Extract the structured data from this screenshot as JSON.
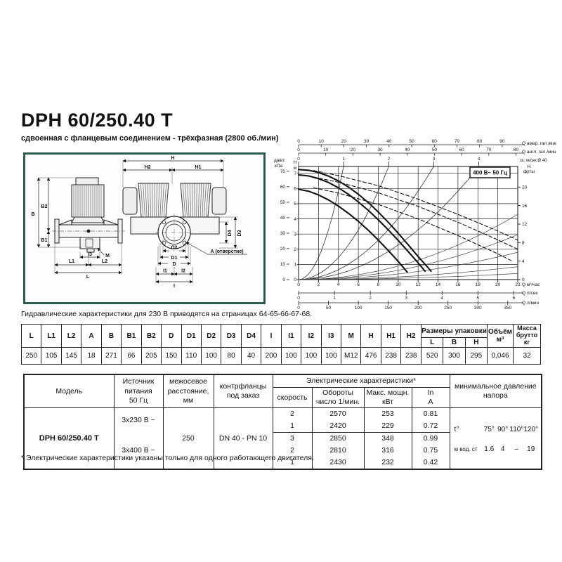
{
  "page": {
    "title": "DPH 60/250.40 T",
    "subtitle": "сдвоенная с фланцевым соединением - трёхфазная (2800 об./мин)",
    "note": "Гидравлические характеристики для 230 В приводятся на страницах 64-65-66-67-68.",
    "footnote": "* Электрические характеристики указаны только для одного работающего двигателя."
  },
  "drawing": {
    "dims": {
      "H": "H",
      "H2": "H2",
      "H1": "H1",
      "B": "B",
      "B2": "B2",
      "B1": "B1",
      "L": "L",
      "L1": "L1",
      "L2": "L2",
      "I": "I",
      "I1": "I1",
      "I2": "I2",
      "I3": "I3",
      "M": "M",
      "D": "D",
      "D1": "D1",
      "D2": "D2",
      "D3": "D3",
      "D4": "D4",
      "A_hole": "А (отверстие)"
    }
  },
  "chart_data": {
    "type": "line",
    "title": "",
    "voltage_box": "400 В~ 50 Гц",
    "xlim_m3h": [
      0,
      22
    ],
    "ylim_m": [
      0,
      7.45
    ],
    "grid": true,
    "x_top_axes": [
      {
        "id": "usgpm",
        "label": "Q амер. гал./мин",
        "scale_m3h_per_unit": 0.2271,
        "ticks": [
          0,
          10,
          20,
          30,
          40,
          50,
          60,
          70,
          80,
          90
        ]
      },
      {
        "id": "ukgpm",
        "label": "Q англ. гал./мин",
        "scale_m3h_per_unit": 0.2728,
        "ticks": [
          0,
          10,
          20,
          30,
          40,
          50,
          60,
          70,
          80
        ]
      },
      {
        "id": "speed",
        "label": "ск. м/сек Ø 40",
        "scale_m3h_per_unit": 4.523,
        "ticks": [
          0,
          1,
          2,
          3,
          4
        ]
      }
    ],
    "x_bottom_axes": [
      {
        "id": "m3h",
        "label": "Q м³/час",
        "scale_m3h_per_unit": 1,
        "ticks": [
          0,
          2,
          4,
          6,
          8,
          10,
          12,
          14,
          16,
          18,
          20,
          22
        ]
      },
      {
        "id": "ls",
        "label": "Q л/сек",
        "scale_m3h_per_unit": 3.6,
        "ticks": [
          0,
          1,
          2,
          3,
          4,
          5,
          6
        ]
      },
      {
        "id": "lmin",
        "label": "Q л/мин",
        "scale_m3h_per_unit": 0.06,
        "ticks": [
          0,
          50,
          100,
          150,
          200,
          250,
          300,
          350
        ]
      }
    ],
    "y_left_axes": [
      {
        "id": "kpa",
        "label_lines": [
          "давл.",
          "кПа"
        ],
        "scale_m_per_unit": 0.10194,
        "ticks": [
          0,
          10,
          20,
          30,
          40,
          50,
          60,
          70
        ]
      },
      {
        "id": "m",
        "label_lines": [
          "Н",
          "м"
        ],
        "scale_m_per_unit": 1,
        "ticks": [
          0,
          1,
          2,
          3,
          4,
          5,
          6,
          7
        ]
      }
    ],
    "y_right_axis": {
      "id": "ft",
      "label_lines": [
        "Н",
        "футы"
      ],
      "scale_m_per_unit": 0.3048,
      "ticks": [
        0,
        4,
        8,
        12,
        16,
        20
      ]
    },
    "series": [
      {
        "name": "speed-3-single",
        "style": "solid",
        "points": [
          [
            0,
            7.25
          ],
          [
            1,
            7.2
          ],
          [
            2,
            7.05
          ],
          [
            3,
            6.82
          ],
          [
            4,
            6.5
          ],
          [
            5,
            6.1
          ],
          [
            6,
            5.62
          ],
          [
            7,
            5.07
          ],
          [
            8,
            4.45
          ],
          [
            9,
            3.78
          ],
          [
            10,
            3.06
          ],
          [
            11,
            2.3
          ],
          [
            12,
            1.52
          ],
          [
            13,
            0.78
          ],
          [
            13.3,
            0.55
          ]
        ]
      },
      {
        "name": "speed-2-single",
        "style": "solid",
        "points": [
          [
            0,
            6.9
          ],
          [
            1,
            6.83
          ],
          [
            2,
            6.65
          ],
          [
            3,
            6.4
          ],
          [
            4,
            6.05
          ],
          [
            5,
            5.62
          ],
          [
            6,
            5.12
          ],
          [
            7,
            4.56
          ],
          [
            8,
            3.94
          ],
          [
            9,
            3.28
          ],
          [
            10,
            2.58
          ],
          [
            11,
            1.85
          ],
          [
            12,
            1.1
          ],
          [
            12.7,
            0.55
          ]
        ]
      },
      {
        "name": "speed-1-single",
        "style": "solid",
        "points": [
          [
            0,
            5.95
          ],
          [
            1,
            5.82
          ],
          [
            2,
            5.58
          ],
          [
            3,
            5.25
          ],
          [
            4,
            4.84
          ],
          [
            5,
            4.37
          ],
          [
            6,
            3.84
          ],
          [
            7,
            3.25
          ],
          [
            8,
            2.6
          ],
          [
            9,
            1.92
          ],
          [
            10,
            1.2
          ],
          [
            10.9,
            0.5
          ]
        ]
      },
      {
        "name": "speed-3-twin",
        "style": "dashed",
        "points": [
          [
            1.5,
            7.18
          ],
          [
            4,
            6.85
          ],
          [
            8,
            6.18
          ],
          [
            12,
            5.3
          ],
          [
            16,
            4.3
          ],
          [
            20,
            3.2
          ],
          [
            22,
            2.6
          ]
        ]
      },
      {
        "name": "speed-2-twin",
        "style": "dashed",
        "points": [
          [
            1.5,
            6.75
          ],
          [
            4,
            6.42
          ],
          [
            8,
            5.72
          ],
          [
            12,
            4.82
          ],
          [
            16,
            3.78
          ],
          [
            20,
            2.62
          ],
          [
            22,
            2.0
          ]
        ]
      },
      {
        "name": "speed-1-twin",
        "style": "dashed",
        "points": [
          [
            1.5,
            6.05
          ],
          [
            4,
            5.7
          ],
          [
            8,
            4.95
          ],
          [
            12,
            4.0
          ],
          [
            16,
            2.9
          ],
          [
            20,
            1.7
          ],
          [
            21.5,
            1.2
          ]
        ]
      }
    ],
    "velocity_guides_end_q": [
      4.52,
      9.05,
      13.57,
      18.1
    ],
    "system_guides_end_points": [
      [
        22,
        4.3
      ],
      [
        22,
        2.95
      ],
      [
        22,
        1.8
      ],
      [
        22,
        0.85
      ],
      [
        22,
        0.4
      ]
    ]
  },
  "dim_table": {
    "headers": [
      "L",
      "L1",
      "L2",
      "A",
      "B",
      "B1",
      "B2",
      "D",
      "D1",
      "D2",
      "D3",
      "D4",
      "I",
      "I1",
      "I2",
      "I3",
      "M",
      "H",
      "H1",
      "H2"
    ],
    "values": [
      "250",
      "105",
      "145",
      "18",
      "271",
      "66",
      "205",
      "150",
      "110",
      "100",
      "80",
      "40",
      "200",
      "100",
      "100",
      "100",
      "M12",
      "476",
      "238",
      "238"
    ],
    "packaging": {
      "title": "Размеры упаковки",
      "cols": [
        "L",
        "B",
        "H"
      ],
      "values": [
        "520",
        "300",
        "295"
      ]
    },
    "volume": {
      "header": "Объём\nм³",
      "value": "0,046"
    },
    "mass": {
      "header": "Масса\nбрутто кг",
      "value": "32"
    }
  },
  "spec_table": {
    "model_header": "Модель",
    "model": "DPH 60/250.40 T",
    "power_header": "Источник\nпитания\n50 Гц",
    "power_230": "3x230 В ~",
    "power_400": "3x400 В ~",
    "distance_header": "межосевое\nрасстояние,\nмм",
    "distance": "250",
    "flange_header": "контрфланцы\nпод заказ",
    "flange": "DN 40 - PN 10",
    "electrical_header": "Электрические характеристики*",
    "col_speed": "скорость",
    "col_rpm": "Обороты\nчисло 1/мин.",
    "col_power": "Макс. мощн.\nкВт",
    "col_in": "In\nА",
    "rows_230": [
      {
        "speed": "2",
        "rpm": "2570",
        "power": "253",
        "in": "0.81"
      },
      {
        "speed": "1",
        "rpm": "2420",
        "power": "229",
        "in": "0.72"
      }
    ],
    "rows_400": [
      {
        "speed": "3",
        "rpm": "2850",
        "power": "348",
        "in": "0.99"
      },
      {
        "speed": "2",
        "rpm": "2810",
        "power": "316",
        "in": "0.75"
      },
      {
        "speed": "1",
        "rpm": "2430",
        "power": "232",
        "in": "0.42"
      }
    ],
    "min_pressure": {
      "header": "минимальное давление\nнапора",
      "temp_label": "t°",
      "temps": [
        "75°",
        "90°",
        "110°",
        "120°"
      ],
      "unit_label": "м вод. ст",
      "values": [
        "1.6",
        "4",
        "–",
        "19"
      ]
    }
  }
}
